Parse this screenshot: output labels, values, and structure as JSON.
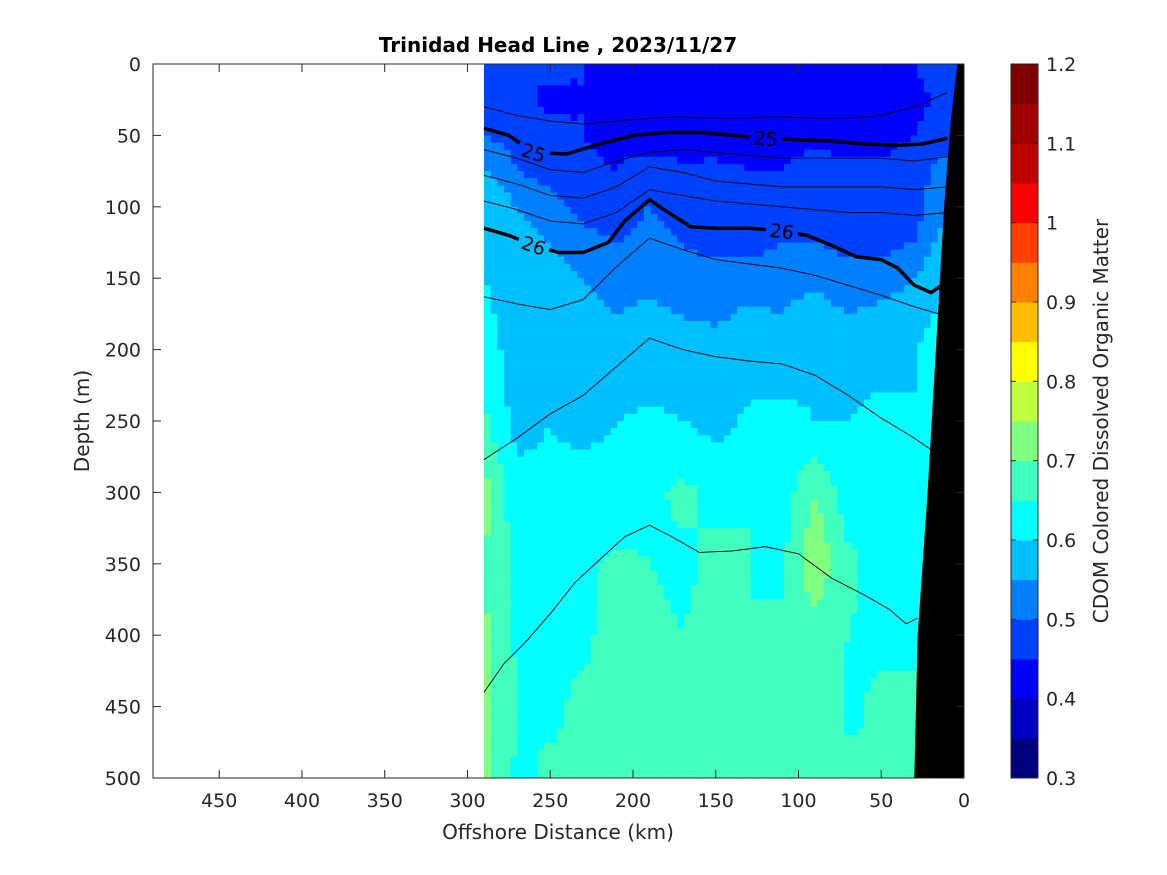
{
  "chart_data": {
    "type": "heatmap",
    "title": "Trinidad Head Line , 2023/11/27",
    "xlabel": "Offshore Distance (km)",
    "ylabel": "Depth (m)",
    "xlim": [
      490,
      0
    ],
    "ylim": [
      0,
      500
    ],
    "x_reversed": true,
    "y_reversed": true,
    "x_ticks": [
      450,
      400,
      350,
      300,
      250,
      200,
      150,
      100,
      50,
      0
    ],
    "y_ticks": [
      0,
      50,
      100,
      150,
      200,
      250,
      300,
      350,
      400,
      450,
      500
    ],
    "data_extent_km": [
      0,
      290
    ],
    "colorbar": {
      "label": "CDOM Colored Dissolved Organic Matter",
      "range": [
        0.3,
        1.2
      ],
      "ticks": [
        0.3,
        0.4,
        0.5,
        0.6,
        0.7,
        0.8,
        0.9,
        1,
        1.1,
        1.2
      ],
      "levels": [
        0.3,
        0.35,
        0.4,
        0.45,
        0.5,
        0.55,
        0.6,
        0.65,
        0.7,
        0.75,
        0.8,
        0.85,
        0.9,
        0.95,
        1.0,
        1.05,
        1.1,
        1.15,
        1.2
      ],
      "colormap": "jet",
      "colors": [
        "#00007f",
        "#0000c0",
        "#0000ff",
        "#0040ff",
        "#0080ff",
        "#00bfff",
        "#00ffff",
        "#40ffbf",
        "#80ff80",
        "#bfff40",
        "#ffff00",
        "#ffbf00",
        "#ff8000",
        "#ff4000",
        "#ff0000",
        "#bf0000",
        "#a00000",
        "#800000"
      ]
    },
    "cdom_field": {
      "x": [
        290,
        270,
        250,
        230,
        210,
        190,
        170,
        150,
        130,
        110,
        90,
        70,
        50,
        30,
        10
      ],
      "depth": [
        0,
        25,
        50,
        75,
        100,
        125,
        150,
        175,
        200,
        250,
        300,
        350,
        400,
        450,
        500
      ],
      "values": [
        [
          0.47,
          0.45,
          0.46,
          0.45,
          0.44,
          0.43,
          0.44,
          0.42,
          0.41,
          0.42,
          0.43,
          0.42,
          0.44,
          0.45,
          0.47
        ],
        [
          0.48,
          0.46,
          0.44,
          0.45,
          0.43,
          0.42,
          0.41,
          0.42,
          0.41,
          0.42,
          0.42,
          0.41,
          0.42,
          0.44,
          0.46
        ],
        [
          0.5,
          0.48,
          0.46,
          0.45,
          0.44,
          0.43,
          0.42,
          0.43,
          0.43,
          0.43,
          0.44,
          0.43,
          0.43,
          0.45,
          0.48
        ],
        [
          0.56,
          0.5,
          0.48,
          0.46,
          0.45,
          0.47,
          0.46,
          0.46,
          0.45,
          0.45,
          0.47,
          0.46,
          0.46,
          0.48,
          0.52
        ],
        [
          0.6,
          0.55,
          0.52,
          0.48,
          0.47,
          0.5,
          0.48,
          0.47,
          0.47,
          0.48,
          0.47,
          0.5,
          0.48,
          0.48,
          0.55
        ],
        [
          0.6,
          0.58,
          0.55,
          0.52,
          0.5,
          0.52,
          0.5,
          0.48,
          0.48,
          0.5,
          0.5,
          0.48,
          0.48,
          0.5,
          0.58
        ],
        [
          0.6,
          0.56,
          0.58,
          0.55,
          0.53,
          0.54,
          0.52,
          0.52,
          0.52,
          0.53,
          0.54,
          0.52,
          0.53,
          0.55,
          0.6
        ],
        [
          0.62,
          0.55,
          0.58,
          0.56,
          0.55,
          0.56,
          0.55,
          0.54,
          0.56,
          0.55,
          0.57,
          0.55,
          0.56,
          0.57,
          0.62
        ],
        [
          0.63,
          0.57,
          0.57,
          0.58,
          0.56,
          0.57,
          0.56,
          0.57,
          0.57,
          0.56,
          0.58,
          0.58,
          0.57,
          0.6,
          0.63
        ],
        [
          0.66,
          0.58,
          0.6,
          0.58,
          0.6,
          0.61,
          0.6,
          0.58,
          0.61,
          0.62,
          0.6,
          0.6,
          0.62,
          0.6,
          0.63
        ],
        [
          0.72,
          0.62,
          0.61,
          0.63,
          0.62,
          0.64,
          0.66,
          0.64,
          0.65,
          0.62,
          0.7,
          0.62,
          0.64,
          0.63,
          0.64
        ],
        [
          0.7,
          0.63,
          0.62,
          0.64,
          0.66,
          0.65,
          0.64,
          0.66,
          0.65,
          0.64,
          0.74,
          0.66,
          0.63,
          0.64,
          0.64
        ],
        [
          0.71,
          0.64,
          0.65,
          0.64,
          0.67,
          0.66,
          0.65,
          0.67,
          0.65,
          0.66,
          0.68,
          0.65,
          0.64,
          0.65,
          0.65
        ],
        [
          0.72,
          0.65,
          0.64,
          0.66,
          0.65,
          0.67,
          0.66,
          0.65,
          0.66,
          0.67,
          0.7,
          0.64,
          0.66,
          0.65,
          0.65
        ],
        [
          0.71,
          0.64,
          0.66,
          0.65,
          0.66,
          0.68,
          0.66,
          0.66,
          0.65,
          0.66,
          0.69,
          0.66,
          0.65,
          0.65,
          0.65
        ]
      ]
    },
    "density_contours": {
      "labeled": [
        {
          "label": "25",
          "x": [
            290,
            275,
            260,
            240,
            220,
            200,
            180,
            160,
            140,
            120,
            100,
            80,
            60,
            40,
            25,
            10
          ],
          "depth": [
            45,
            50,
            62,
            63,
            56,
            50,
            48,
            48,
            50,
            52,
            53,
            54,
            56,
            57,
            56,
            52
          ]
        },
        {
          "label": "26",
          "x": [
            290,
            275,
            260,
            245,
            230,
            215,
            205,
            190,
            180,
            165,
            150,
            130,
            110,
            95,
            80,
            65,
            50,
            40,
            30,
            20,
            12
          ],
          "depth": [
            115,
            120,
            127,
            132,
            132,
            125,
            110,
            95,
            103,
            114,
            115,
            115,
            117,
            120,
            127,
            135,
            137,
            143,
            155,
            160,
            154
          ]
        }
      ],
      "thin": [
        {
          "x": [
            290,
            270,
            250,
            230,
            210,
            190,
            170,
            150,
            130,
            110,
            90,
            70,
            50,
            30,
            10
          ],
          "depth": [
            30,
            36,
            40,
            42,
            40,
            38,
            37,
            38,
            38,
            37,
            38,
            38,
            36,
            30,
            20
          ]
        },
        {
          "x": [
            290,
            270,
            250,
            230,
            210,
            190,
            170,
            150,
            130,
            110,
            90,
            70,
            50,
            30,
            10
          ],
          "depth": [
            60,
            66,
            74,
            76,
            68,
            62,
            60,
            62,
            64,
            66,
            66,
            66,
            66,
            68,
            65
          ]
        },
        {
          "x": [
            290,
            270,
            250,
            230,
            210,
            190,
            170,
            150,
            130,
            110,
            90,
            70,
            50,
            30,
            10
          ],
          "depth": [
            78,
            84,
            92,
            94,
            86,
            72,
            76,
            82,
            84,
            86,
            86,
            86,
            86,
            88,
            86
          ]
        },
        {
          "x": [
            290,
            270,
            250,
            230,
            210,
            190,
            170,
            150,
            130,
            110,
            90,
            70,
            50,
            30,
            10
          ],
          "depth": [
            96,
            102,
            110,
            112,
            104,
            88,
            92,
            96,
            98,
            100,
            102,
            104,
            104,
            106,
            104
          ]
        },
        {
          "x": [
            290,
            270,
            250,
            230,
            210,
            190,
            170,
            150,
            130,
            110,
            90,
            70,
            50,
            30,
            15
          ],
          "depth": [
            163,
            168,
            172,
            165,
            142,
            122,
            130,
            137,
            140,
            143,
            148,
            155,
            162,
            170,
            175
          ]
        },
        {
          "x": [
            290,
            270,
            250,
            230,
            210,
            190,
            170,
            150,
            130,
            110,
            90,
            70,
            50,
            30,
            20
          ],
          "depth": [
            277,
            262,
            245,
            232,
            212,
            192,
            200,
            205,
            208,
            210,
            218,
            232,
            248,
            262,
            270
          ]
        },
        {
          "x": [
            290,
            278,
            265,
            250,
            235,
            220,
            205,
            190,
            175,
            160,
            140,
            120,
            100,
            80,
            60,
            45,
            35,
            28
          ],
          "depth": [
            440,
            420,
            405,
            385,
            363,
            347,
            331,
            323,
            332,
            342,
            341,
            338,
            343,
            360,
            372,
            382,
            392,
            388
          ]
        }
      ]
    }
  }
}
